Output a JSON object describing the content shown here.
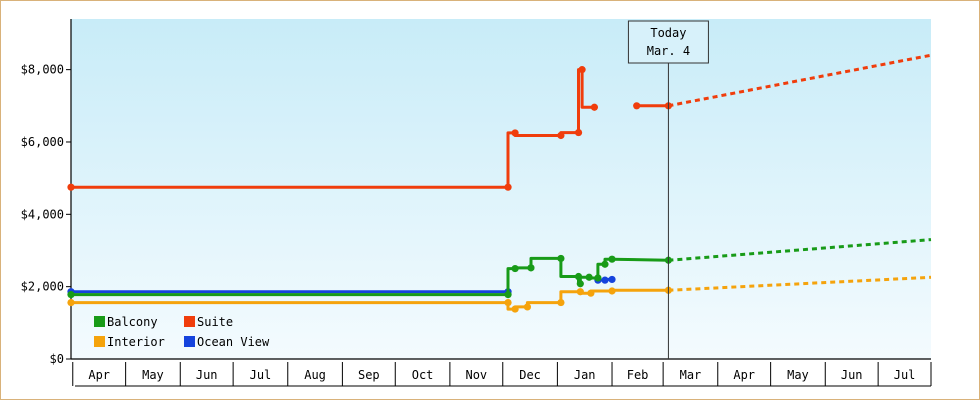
{
  "chart_data": {
    "type": "line",
    "title": "",
    "xlabel": "",
    "ylabel": "",
    "x_axis": {
      "type": "date",
      "range": [
        "2023-03-31",
        "2024-07-31"
      ]
    },
    "ylim": [
      0,
      9400
    ],
    "y_ticks": [
      {
        "value": 0,
        "label": "$0"
      },
      {
        "value": 2000,
        "label": "$2,000"
      },
      {
        "value": 4000,
        "label": "$4,000"
      },
      {
        "value": 6000,
        "label": "$6,000"
      },
      {
        "value": 8000,
        "label": "$8,000"
      }
    ],
    "month_ticks": [
      {
        "label": "Apr",
        "start": "2023-04-01",
        "end": "2023-05-01"
      },
      {
        "label": "May",
        "start": "2023-05-01",
        "end": "2023-06-01"
      },
      {
        "label": "Jun",
        "start": "2023-06-01",
        "end": "2023-07-01"
      },
      {
        "label": "Jul",
        "start": "2023-07-01",
        "end": "2023-08-01"
      },
      {
        "label": "Aug",
        "start": "2023-08-01",
        "end": "2023-09-01"
      },
      {
        "label": "Sep",
        "start": "2023-09-01",
        "end": "2023-10-01"
      },
      {
        "label": "Oct",
        "start": "2023-10-01",
        "end": "2023-11-01"
      },
      {
        "label": "Nov",
        "start": "2023-11-01",
        "end": "2023-12-01"
      },
      {
        "label": "Dec",
        "start": "2023-12-01",
        "end": "2024-01-01"
      },
      {
        "label": "Jan",
        "start": "2024-01-01",
        "end": "2024-02-01"
      },
      {
        "label": "Feb",
        "start": "2024-02-01",
        "end": "2024-03-01"
      },
      {
        "label": "Mar",
        "start": "2024-03-01",
        "end": "2024-04-01"
      },
      {
        "label": "Apr",
        "start": "2024-04-01",
        "end": "2024-05-01"
      },
      {
        "label": "May",
        "start": "2024-05-01",
        "end": "2024-06-01"
      },
      {
        "label": "Jun",
        "start": "2024-06-01",
        "end": "2024-07-01"
      },
      {
        "label": "Jul",
        "start": "2024-07-01",
        "end": "2024-08-01"
      }
    ],
    "today": {
      "line1": "Today",
      "line2": "Mar. 4",
      "date": "2024-03-04"
    },
    "grid": false,
    "legend_position": "bottom-left",
    "background_gradient": [
      "#c8ecf8",
      "#f4fbfe"
    ],
    "series": [
      {
        "name": "Balcony",
        "color": "#189b18",
        "points": [
          [
            "2023-03-31",
            1780
          ],
          [
            "2023-12-04",
            1780
          ],
          [
            "2023-12-04",
            2500
          ],
          [
            "2023-12-08",
            2500
          ],
          [
            "2023-12-08",
            2520
          ],
          [
            "2023-12-17",
            2520
          ],
          [
            "2023-12-17",
            2780
          ],
          [
            "2024-01-03",
            2780
          ],
          [
            "2024-01-03",
            2280
          ],
          [
            "2024-01-13",
            2280
          ],
          [
            "2024-01-13",
            2080
          ],
          [
            "2024-01-14",
            2080
          ],
          [
            "2024-01-14",
            2260
          ],
          [
            "2024-01-19",
            2260
          ],
          [
            "2024-01-19",
            2240
          ],
          [
            "2024-01-24",
            2240
          ],
          [
            "2024-01-24",
            2620
          ],
          [
            "2024-01-28",
            2620
          ],
          [
            "2024-01-28",
            2760
          ],
          [
            "2024-02-01",
            2760
          ],
          [
            "2024-02-01",
            2760
          ],
          [
            "2024-03-04",
            2730
          ]
        ],
        "projection": [
          [
            "2024-03-04",
            2730
          ],
          [
            "2024-07-31",
            3300
          ]
        ]
      },
      {
        "name": "Suite",
        "color": "#f03d0c",
        "points": [
          [
            "2023-03-31",
            4750
          ],
          [
            "2023-12-04",
            4750
          ],
          [
            "2023-12-04",
            6250
          ],
          [
            "2023-12-08",
            6250
          ],
          [
            "2023-12-08",
            6180
          ],
          [
            "2024-01-03",
            6180
          ],
          [
            "2024-01-03",
            6260
          ],
          [
            "2024-01-13",
            6260
          ],
          [
            "2024-01-13",
            8000
          ],
          [
            "2024-01-15",
            8000
          ],
          [
            "2024-01-15",
            6960
          ],
          [
            "2024-01-22",
            6960
          ]
        ],
        "points_2": [
          [
            "2024-02-15",
            7000
          ],
          [
            "2024-03-04",
            7000
          ]
        ],
        "projection": [
          [
            "2024-03-04",
            7000
          ],
          [
            "2024-07-31",
            8400
          ]
        ]
      },
      {
        "name": "Interior",
        "color": "#f5a30c",
        "points": [
          [
            "2023-03-31",
            1560
          ],
          [
            "2023-12-04",
            1560
          ],
          [
            "2023-12-04",
            1380
          ],
          [
            "2023-12-08",
            1380
          ],
          [
            "2023-12-08",
            1440
          ],
          [
            "2023-12-15",
            1440
          ],
          [
            "2023-12-15",
            1560
          ],
          [
            "2024-01-03",
            1560
          ],
          [
            "2024-01-03",
            1860
          ],
          [
            "2024-01-14",
            1860
          ],
          [
            "2024-01-14",
            1820
          ],
          [
            "2024-01-20",
            1820
          ],
          [
            "2024-01-20",
            1880
          ],
          [
            "2024-02-01",
            1880
          ],
          [
            "2024-02-01",
            1900
          ],
          [
            "2024-03-04",
            1900
          ]
        ],
        "projection": [
          [
            "2024-03-04",
            1900
          ],
          [
            "2024-07-31",
            2260
          ]
        ]
      },
      {
        "name": "Ocean View",
        "color": "#1543dd",
        "points": [
          [
            "2023-03-31",
            1860
          ],
          [
            "2023-12-04",
            1860
          ]
        ],
        "points_2": [
          [
            "2024-01-24",
            2180
          ],
          [
            "2024-01-28",
            2180
          ],
          [
            "2024-01-28",
            2200
          ],
          [
            "2024-02-01",
            2200
          ]
        ],
        "projection": []
      }
    ]
  }
}
